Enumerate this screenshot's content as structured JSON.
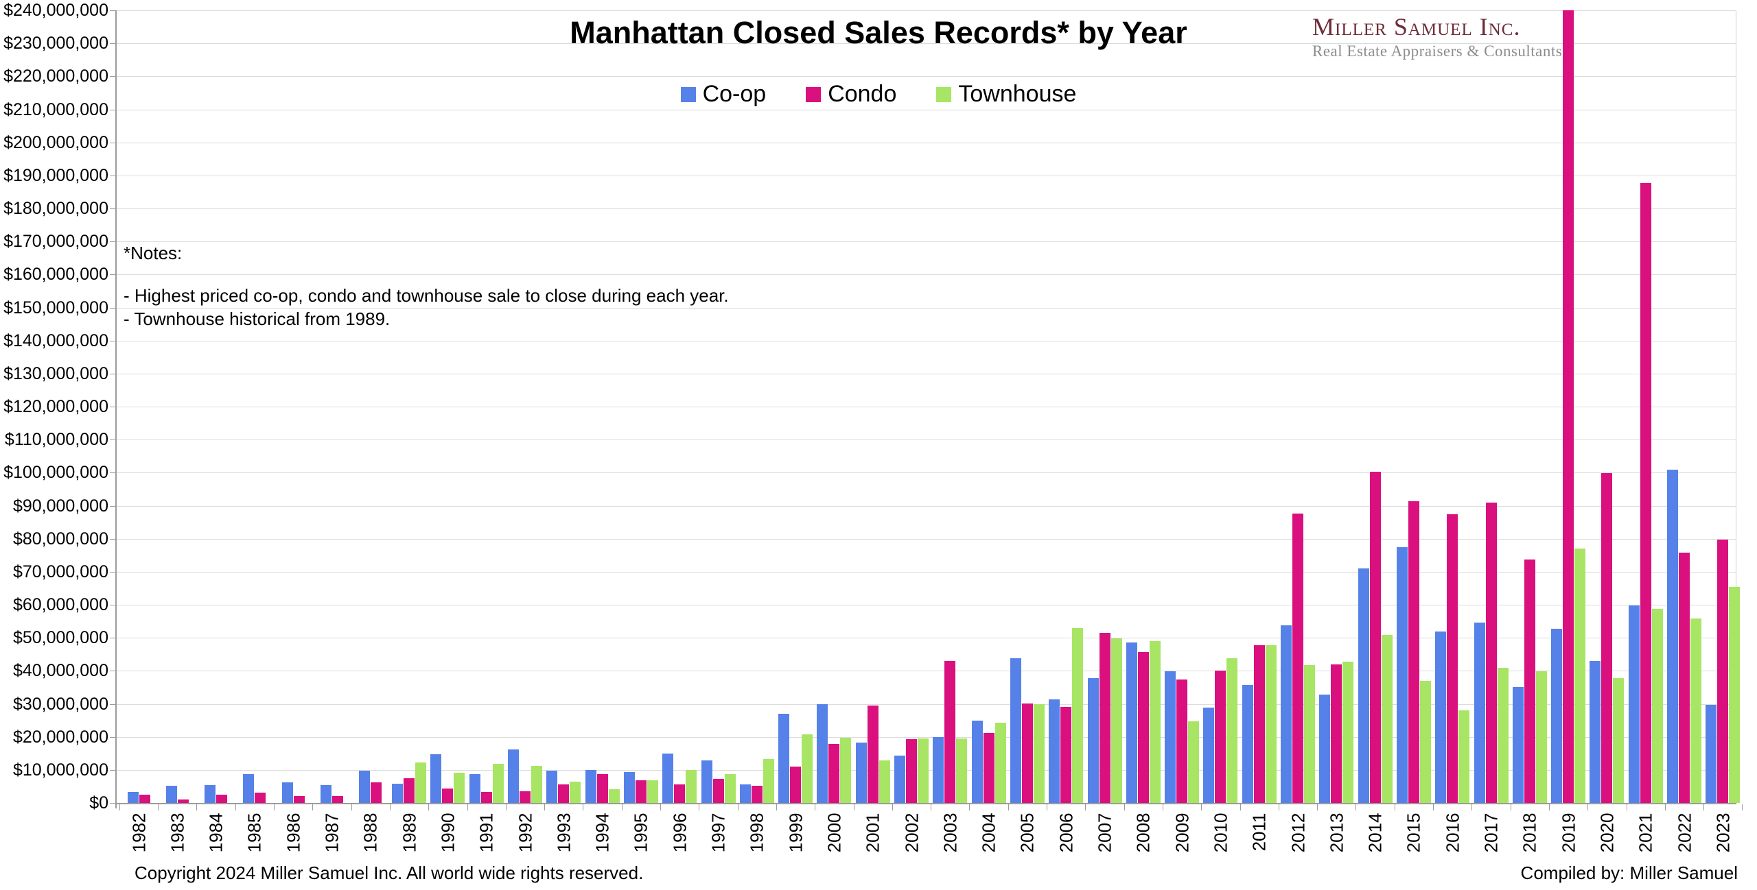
{
  "page": {
    "title": "Manhattan Closed Sales Records* by Year",
    "logo": {
      "name": "Miller Samuel Inc.",
      "tagline": "Real Estate Appraisers & Consultants"
    },
    "notes": {
      "heading": "*Notes:",
      "lines": [
        "- Highest priced co-op, condo and townhouse sale to close during each year.",
        "- Townhouse historical from 1989."
      ]
    },
    "footer_left": "Copyright 2024 Miller Samuel Inc.  All world wide rights reserved.",
    "footer_right": "Compiled by: Miller Samuel"
  },
  "colors": {
    "coop": "#5581e9",
    "condo": "#d9107e",
    "townhouse": "#a8e564",
    "gridline": "#dcdcdc",
    "axis": "#9c9c9c",
    "logo_maroon": "#6e2c38",
    "logo_gray": "#8c8c8c"
  },
  "chart_data": {
    "type": "bar",
    "title": "Manhattan Closed Sales Records* by Year",
    "xlabel": "",
    "ylabel": "",
    "grid": true,
    "legend_position": "top-center",
    "ylim": [
      0,
      240000000
    ],
    "y_tick_step": 10000000,
    "y_tick_labels_top_down": [
      "$240,000,000",
      "$230,000,000",
      "$220,000,000",
      "$210,000,000",
      "$200,000,000",
      "$190,000,000",
      "$180,000,000",
      "$170,000,000",
      "$160,000,000",
      "$150,000,000",
      "$140,000,000",
      "$130,000,000",
      "$120,000,000",
      "$110,000,000",
      "$100,000,000",
      "$90,000,000",
      "$80,000,000",
      "$70,000,000",
      "$60,000,000",
      "$50,000,000",
      "$40,000,000",
      "$30,000,000",
      "$20,000,000",
      "$10,000,000",
      "$0"
    ],
    "categories": [
      1982,
      1983,
      1984,
      1985,
      1986,
      1987,
      1988,
      1989,
      1990,
      1991,
      1992,
      1993,
      1994,
      1995,
      1996,
      1997,
      1998,
      1999,
      2000,
      2001,
      2002,
      2003,
      2004,
      2005,
      2006,
      2007,
      2008,
      2009,
      2010,
      2011,
      2012,
      2013,
      2014,
      2015,
      2016,
      2017,
      2018,
      2019,
      2020,
      2021,
      2022,
      2023
    ],
    "series": [
      {
        "name": "Co-op",
        "color_key": "coop",
        "values": [
          3300000,
          5100000,
          5300000,
          8800000,
          6300000,
          5500000,
          9800000,
          5800000,
          14700000,
          8700000,
          16100000,
          9800000,
          9900000,
          9300000,
          14900000,
          12900000,
          5700000,
          26900000,
          29800000,
          18300000,
          14400000,
          19900000,
          25000000,
          43800000,
          31300000,
          37700000,
          48600000,
          39900000,
          28900000,
          35800000,
          53800000,
          32900000,
          71100000,
          77400000,
          51800000,
          54700000,
          35100000,
          52800000,
          42900000,
          59800000,
          100800000,
          29700000
        ]
      },
      {
        "name": "Condo",
        "color_key": "condo",
        "values": [
          2500000,
          1100000,
          2400000,
          3200000,
          2000000,
          2000000,
          6300000,
          7500000,
          4400000,
          3400000,
          3600000,
          5700000,
          8700000,
          6800000,
          5700000,
          7200000,
          5200000,
          11100000,
          17900000,
          29400000,
          19300000,
          42900000,
          21200000,
          30200000,
          29100000,
          51400000,
          45700000,
          37400000,
          40000000,
          47700000,
          87700000,
          41900000,
          100200000,
          91400000,
          87400000,
          91000000,
          73700000,
          240000000,
          99800000,
          187600000,
          75800000,
          79700000
        ]
      },
      {
        "name": "Townhouse",
        "color_key": "townhouse",
        "values": [
          null,
          null,
          null,
          null,
          null,
          null,
          null,
          12200000,
          9100000,
          11800000,
          11300000,
          6400000,
          4200000,
          6900000,
          9900000,
          8700000,
          13200000,
          20800000,
          19800000,
          12800000,
          19600000,
          19500000,
          24200000,
          29800000,
          52900000,
          49800000,
          49000000,
          24700000,
          43800000,
          47800000,
          41700000,
          42800000,
          50900000,
          36900000,
          28000000,
          40800000,
          39900000,
          77000000,
          37800000,
          58800000,
          55900000,
          65400000
        ]
      }
    ]
  }
}
